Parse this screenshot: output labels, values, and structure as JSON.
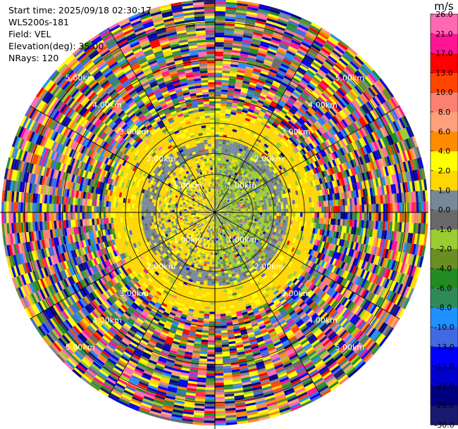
{
  "header": {
    "start_time": "Start time: 2025/09/18 02:30:17",
    "instrument": "WLS200s-181",
    "field": "Field: VEL",
    "elevation": "Elevation(deg): 35.00",
    "nrays": "NRays: 120"
  },
  "chart_data": {
    "type": "heatmap",
    "subtype": "polar-ppi",
    "field": "VEL",
    "units": "m/s",
    "nrays": 120,
    "elevation_deg": 35.0,
    "max_range_km": 5.6,
    "range_ring_labels": [
      "1.00km",
      "2.00km",
      "3.00km",
      "4.00km",
      "5.00km"
    ],
    "range_ring_km": [
      1,
      2,
      3,
      4,
      5
    ],
    "label_bearings_deg": [
      135,
      45,
      315,
      225
    ],
    "colorbar": {
      "unit_label": "m/s",
      "colors": [
        "#191970",
        "#000080",
        "#0000cd",
        "#0000ff",
        "#4169e1",
        "#1e90ff",
        "#2e8b57",
        "#228b22",
        "#6b8e23",
        "#9acd32",
        "#696969",
        "#778899",
        "#ffd700",
        "#ffff00",
        "#ff8c00",
        "#ffa07a",
        "#fa8072",
        "#ff4500",
        "#ff0000",
        "#ff1493",
        "#ff69b4"
      ],
      "tick_labels": [
        "-30.0",
        "-26.0",
        "-21.0",
        "-17.0",
        "-13.0",
        "-10.0",
        "-8.0",
        "-6.0",
        "-4.0",
        "-2.0",
        "-1.0",
        "0.0",
        "1.0",
        "2.0",
        "4.0",
        "6.0",
        "8.0",
        "10.0",
        "13.0",
        "17.0",
        "21.0",
        "26.0"
      ],
      "range": [
        -30,
        30
      ]
    },
    "structure": {
      "inner_core_km": 1.55,
      "inner_ring_km": 2.35,
      "yellow_band_km": [
        1.9,
        2.6
      ],
      "noise_region_km": [
        2.6,
        5.6
      ]
    }
  }
}
